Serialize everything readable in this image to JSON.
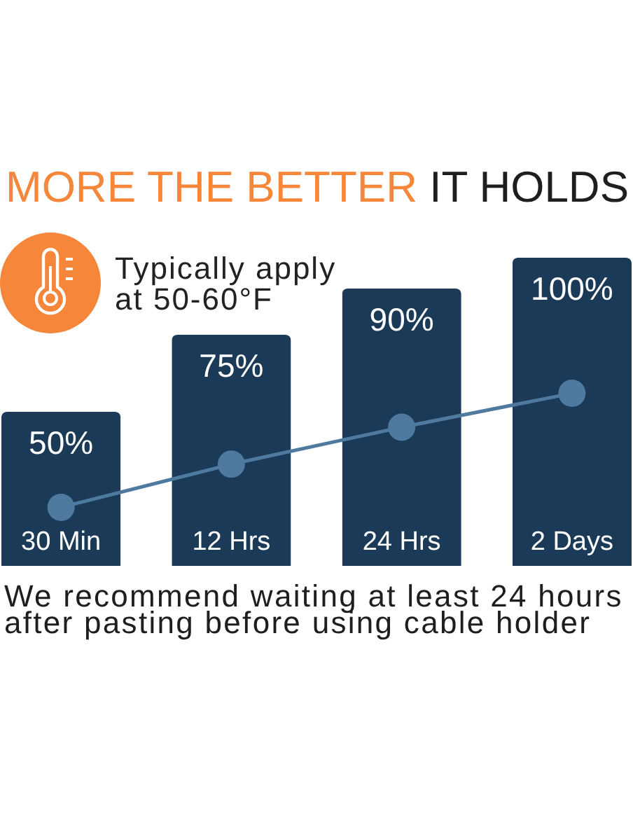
{
  "chart_data": {
    "type": "bar",
    "title": "MORE THE BETTER IT HOLDS",
    "categories": [
      "30 Min",
      "12 Hrs",
      "24 Hrs",
      "2 Days"
    ],
    "series": [
      {
        "type": "bar",
        "color": "#1b3a57",
        "values": [
          50,
          75,
          90,
          100
        ],
        "value_labels": [
          "50%",
          "75%",
          "90%",
          "100%"
        ]
      },
      {
        "type": "line",
        "color": "#4f7aa0",
        "values": [
          19,
          33,
          45,
          56
        ]
      }
    ],
    "marker": "circle",
    "tick_labels": "x",
    "annotations": [
      "Typically apply at 50-60°F",
      "We recommend waiting at least 24 hours after pasting before using cable holder"
    ]
  }
}
